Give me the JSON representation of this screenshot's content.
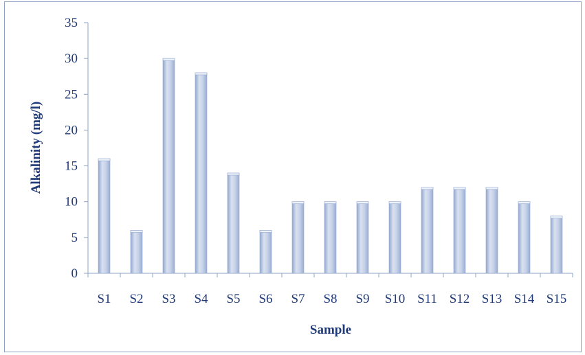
{
  "chart_data": {
    "type": "bar",
    "title": "",
    "xlabel": "Sample",
    "ylabel": "Alkalinity (mg/l)",
    "categories": [
      "S1",
      "S2",
      "S3",
      "S4",
      "S5",
      "S6",
      "S7",
      "S8",
      "S9",
      "S10",
      "S11",
      "S12",
      "S13",
      "S14",
      "S15"
    ],
    "values": [
      16,
      6,
      30,
      28,
      14,
      6,
      10,
      10,
      10,
      10,
      12,
      12,
      12,
      10,
      8
    ],
    "ylim": [
      0,
      35
    ],
    "yticks": [
      0,
      5,
      10,
      15,
      20,
      25,
      30,
      35
    ],
    "grid": false,
    "legend": "none",
    "colors": {
      "bar_light": "#d9e1f0",
      "bar_mid": "#b7c5e0",
      "bar_dark": "#93a7cf",
      "bar_top": "#eef2f9",
      "axis": "#8ea3c4",
      "text": "#1f3a78"
    }
  }
}
